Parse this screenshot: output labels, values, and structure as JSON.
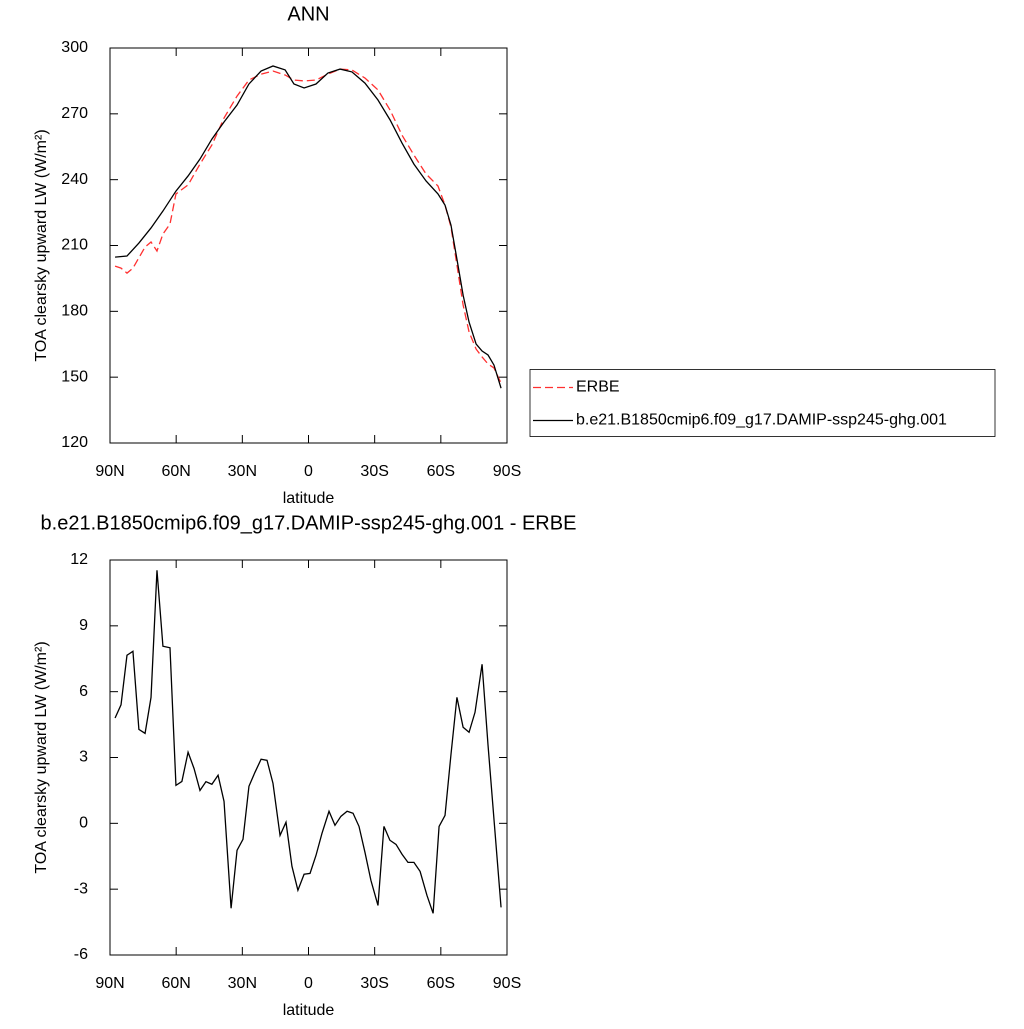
{
  "chart_data": [
    {
      "type": "line",
      "title": "ANN",
      "x_label": "latitude",
      "y_label": "TOA clearsky upward LW (W/m²)",
      "xlim": [
        90,
        -90
      ],
      "xticks": [
        {
          "value": 90,
          "label": "90N"
        },
        {
          "value": 60,
          "label": "60N"
        },
        {
          "value": 30,
          "label": "30N"
        },
        0,
        {
          "value": -30,
          "label": "30S"
        },
        {
          "value": -60,
          "label": "60S"
        },
        {
          "value": -90,
          "label": "90S"
        }
      ],
      "ylim": [
        120,
        300
      ],
      "yticks": [
        120,
        150,
        180,
        210,
        240,
        270,
        300
      ],
      "legend": "right",
      "series": [
        {
          "name": "ERBE",
          "color": "#ff3030",
          "dash": "dashed",
          "x": [
            87.7,
            85,
            82.3,
            79.6,
            74.1,
            71.4,
            68.7,
            66,
            62.8,
            60.1,
            54.6,
            49.2,
            43.8,
            38.3,
            32.4,
            27,
            21.5,
            16.1,
            10.6,
            6.6,
            2,
            -3.4,
            -8.8,
            -14.3,
            -19.7,
            -25.6,
            -31.5,
            -37,
            -42.4,
            -47.8,
            -53.3,
            -58.7,
            -61.9,
            -64.6,
            -67.3,
            -70.1,
            -72.8,
            -76,
            -78.7,
            -81.4,
            -84.1,
            -87.3
          ],
          "values": [
            200.6,
            199.7,
            197.4,
            199.7,
            209.3,
            211.6,
            207.5,
            215.2,
            219.8,
            233.5,
            237.6,
            247.1,
            255.8,
            268.1,
            278.1,
            285.4,
            288.1,
            289.5,
            287.7,
            285.4,
            285,
            285.4,
            288.1,
            290.4,
            290,
            286.3,
            280.9,
            271.7,
            260.3,
            251.2,
            242.6,
            237.1,
            228.4,
            218.4,
            201.1,
            182.9,
            170.6,
            162.8,
            159.2,
            156,
            154.2,
            147.3
          ]
        },
        {
          "name": "b.e21.B1850cmip6.f09_g17.DAMIP-ssp245-ghg.001",
          "color": "#000000",
          "dash": "solid",
          "x": [
            87.7,
            82.3,
            76.9,
            71.4,
            66,
            60.1,
            54.6,
            49.2,
            43.8,
            38.3,
            32.4,
            27,
            21.5,
            16.1,
            10.6,
            6.6,
            2,
            -3.4,
            -8.8,
            -14.3,
            -19.7,
            -25.6,
            -31.5,
            -37,
            -42.4,
            -47.8,
            -53.3,
            -58.7,
            -61.9,
            -64.6,
            -67.3,
            -70.1,
            -72.8,
            -76,
            -78.7,
            -81.4,
            -84.1,
            -87.3
          ],
          "values": [
            204.7,
            205.2,
            211.1,
            218,
            225.7,
            234.8,
            241.7,
            249.4,
            258.5,
            266.3,
            274,
            283.6,
            289.5,
            291.8,
            290,
            283.6,
            281.8,
            283.6,
            288.6,
            290.4,
            289.1,
            284,
            276.3,
            267.2,
            256.7,
            247.1,
            239.4,
            233.5,
            228.4,
            219.3,
            203.8,
            187.4,
            175.1,
            165.1,
            161.9,
            160.1,
            155.5,
            145
          ]
        }
      ]
    },
    {
      "type": "line",
      "title": "b.e21.B1850cmip6.f09_g17.DAMIP-ssp245-ghg.001 - ERBE",
      "x_label": "latitude",
      "y_label": "TOA clearsky upward LW (W/m²)",
      "xlim": [
        90,
        -90
      ],
      "xticks": [
        {
          "value": 90,
          "label": "90N"
        },
        {
          "value": 60,
          "label": "60N"
        },
        {
          "value": 30,
          "label": "30N"
        },
        0,
        {
          "value": -30,
          "label": "30S"
        },
        {
          "value": -60,
          "label": "60S"
        },
        {
          "value": -90,
          "label": "90S"
        }
      ],
      "ylim": [
        -6,
        12
      ],
      "yticks": [
        -6,
        -3,
        0,
        3,
        6,
        9,
        12
      ],
      "color": "#000000",
      "x": [
        87.7,
        85,
        82.3,
        79.6,
        76.9,
        74.1,
        71.4,
        68.7,
        66,
        62.8,
        60.1,
        57.4,
        54.6,
        51.9,
        49.2,
        46.5,
        43.8,
        41,
        38.3,
        35.1,
        32.4,
        29.7,
        27,
        24.3,
        21.5,
        18.8,
        16.1,
        12.9,
        10.2,
        7.5,
        4.8,
        2,
        -0.7,
        -3.4,
        -6.1,
        -9.3,
        -12,
        -14.7,
        -17.5,
        -20.2,
        -22.9,
        -25.6,
        -28.3,
        -31.5,
        -34.2,
        -36.9,
        -39.7,
        -42.4,
        -45.1,
        -47.8,
        -50.6,
        -53.7,
        -56.5,
        -59.2,
        -61.9,
        -64.6,
        -67.3,
        -70.1,
        -72.8,
        -75.5,
        -78.7,
        -81.4,
        -87.3
      ],
      "values": [
        4.8,
        5.4,
        7.66,
        7.84,
        4.28,
        4.1,
        5.74,
        11.53,
        8.07,
        8.0,
        1.73,
        1.91,
        3.24,
        2.5,
        1.5,
        1.9,
        1.78,
        2.19,
        1.0,
        -3.87,
        -1.23,
        -0.73,
        1.69,
        2.32,
        2.92,
        2.87,
        1.82,
        -0.55,
        0.05,
        -1.96,
        -3.05,
        -2.32,
        -2.28,
        -1.46,
        -0.46,
        0.55,
        -0.09,
        0.32,
        0.55,
        0.46,
        -0.14,
        -1.32,
        -2.6,
        -3.74,
        -0.14,
        -0.77,
        -0.96,
        -1.41,
        -1.78,
        -1.78,
        -2.19,
        -3.28,
        -4.1,
        -0.14,
        0.36,
        3.14,
        5.74,
        4.38,
        4.15,
        5.06,
        7.25,
        3.56,
        -3.83
      ]
    }
  ]
}
